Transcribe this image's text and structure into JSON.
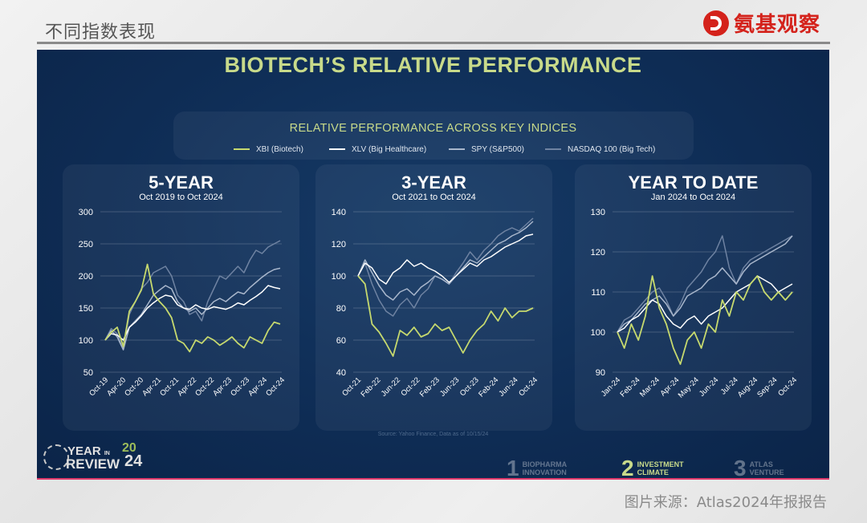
{
  "header": {
    "section_label": "不同指数表现",
    "brand": "氨基观察"
  },
  "slide": {
    "title": "BIOTECH’S RELATIVE PERFORMANCE",
    "legend_title": "RELATIVE PERFORMANCE ACROSS KEY INDICES",
    "legend": [
      {
        "name": "XBI (Biotech)",
        "color": "#c6d96e"
      },
      {
        "name": "XLV (Big Healthcare)",
        "color": "#ffffff"
      },
      {
        "name": "SPY (S&P500)",
        "color": "#a9b7cc"
      },
      {
        "name": "NASDAQ 100 (Big Tech)",
        "color": "#6f83a2"
      }
    ],
    "source": "Source: Yahoo Finance, Data as of 10/15/24",
    "brand_block": {
      "line1": "YEAR",
      "line1_small": "IN",
      "line2": "REVIEW",
      "year_top": "20",
      "year_bottom": "24"
    },
    "sections": [
      {
        "num": "1",
        "label1": "BIOPHARMA",
        "label2": "INNOVATION",
        "active": false
      },
      {
        "num": "2",
        "label1": "INVESTMENT",
        "label2": "CLIMATE",
        "active": true
      },
      {
        "num": "3",
        "label1": "ATLAS",
        "label2": "VENTURE",
        "active": false
      }
    ]
  },
  "footer": {
    "credit": "图片来源：Atlas2024年报报告"
  },
  "chart_data": [
    {
      "type": "line",
      "title": "5-YEAR",
      "subtitle": "Oct 2019 to Oct 2024",
      "ylim": [
        50,
        300
      ],
      "yticks": [
        50,
        100,
        150,
        200,
        250,
        300
      ],
      "xticks": [
        "Oct-19",
        "Apr-20",
        "Oct-20",
        "Apr-21",
        "Oct-21",
        "Apr-22",
        "Oct-22",
        "Apr-23",
        "Oct-23",
        "Apr-24",
        "Oct-24"
      ],
      "series": [
        {
          "name": "XBI (Biotech)",
          "color": "#c6d96e",
          "values": [
            100,
            112,
            120,
            90,
            145,
            160,
            178,
            218,
            172,
            160,
            150,
            135,
            100,
            95,
            82,
            100,
            95,
            105,
            100,
            92,
            98,
            105,
            95,
            88,
            105,
            100,
            95,
            115,
            128,
            125
          ]
        },
        {
          "name": "XLV (Big Healthcare)",
          "color": "#ffffff",
          "values": [
            100,
            110,
            108,
            100,
            120,
            128,
            138,
            150,
            158,
            165,
            170,
            168,
            155,
            150,
            148,
            155,
            150,
            148,
            152,
            150,
            148,
            152,
            158,
            155,
            162,
            168,
            175,
            185,
            182,
            180
          ]
        },
        {
          "name": "SPY (S&P500)",
          "color": "#a9b7cc",
          "values": [
            100,
            115,
            105,
            85,
            120,
            130,
            140,
            155,
            170,
            178,
            185,
            180,
            160,
            150,
            145,
            150,
            140,
            150,
            160,
            165,
            160,
            168,
            175,
            172,
            182,
            190,
            198,
            205,
            210,
            212
          ]
        },
        {
          "name": "NASDAQ 100 (Big Tech)",
          "color": "#6f83a2",
          "values": [
            100,
            118,
            110,
            85,
            140,
            160,
            180,
            190,
            205,
            210,
            215,
            200,
            170,
            160,
            140,
            145,
            130,
            160,
            180,
            200,
            195,
            205,
            215,
            205,
            225,
            240,
            235,
            245,
            250,
            255
          ]
        }
      ]
    },
    {
      "type": "line",
      "title": "3-YEAR",
      "subtitle": "Oct 2021 to Oct 2024",
      "ylim": [
        40,
        140
      ],
      "yticks": [
        40,
        60,
        80,
        100,
        120,
        140
      ],
      "xticks": [
        "Oct-21",
        "Feb-22",
        "Jun-22",
        "Oct-22",
        "Feb-23",
        "Jun-23",
        "Oct-23",
        "Feb-24",
        "Jun-24",
        "Oct-24"
      ],
      "series": [
        {
          "name": "XBI (Biotech)",
          "color": "#c6d96e",
          "values": [
            100,
            95,
            70,
            65,
            58,
            50,
            66,
            63,
            68,
            62,
            64,
            70,
            66,
            68,
            60,
            52,
            60,
            66,
            70,
            78,
            72,
            80,
            74,
            78,
            78,
            80
          ]
        },
        {
          "name": "XLV (Big Healthcare)",
          "color": "#ffffff",
          "values": [
            100,
            108,
            105,
            98,
            95,
            102,
            105,
            110,
            106,
            108,
            105,
            103,
            100,
            96,
            100,
            104,
            108,
            106,
            110,
            112,
            115,
            118,
            120,
            122,
            125,
            126
          ]
        },
        {
          "name": "SPY (S&P500)",
          "color": "#a9b7cc",
          "values": [
            100,
            110,
            102,
            94,
            88,
            85,
            90,
            92,
            88,
            93,
            96,
            100,
            98,
            95,
            100,
            105,
            110,
            108,
            112,
            116,
            120,
            122,
            125,
            127,
            130,
            134
          ]
        },
        {
          "name": "NASDAQ 100 (Big Tech)",
          "color": "#6f83a2",
          "values": [
            100,
            108,
            95,
            85,
            78,
            75,
            82,
            86,
            80,
            88,
            92,
            100,
            98,
            95,
            102,
            108,
            115,
            110,
            116,
            120,
            125,
            128,
            130,
            128,
            132,
            136
          ]
        }
      ]
    },
    {
      "type": "line",
      "title": "YEAR TO DATE",
      "subtitle": "Jan 2024 to Oct 2024",
      "ylim": [
        90,
        130
      ],
      "yticks": [
        90,
        100,
        110,
        120,
        130
      ],
      "xticks": [
        "Jan-24",
        "Feb-24",
        "Mar-24",
        "Apr-24",
        "May-24",
        "Jun-24",
        "Jul-24",
        "Aug-24",
        "Sep-24",
        "Oct-24"
      ],
      "series": [
        {
          "name": "XBI (Biotech)",
          "color": "#c6d96e",
          "values": [
            100,
            96,
            102,
            98,
            104,
            114,
            106,
            102,
            96,
            92,
            98,
            100,
            96,
            102,
            100,
            108,
            104,
            110,
            108,
            112,
            114,
            110,
            108,
            110,
            108,
            110
          ]
        },
        {
          "name": "XLV (Big Healthcare)",
          "color": "#ffffff",
          "values": [
            100,
            101,
            103,
            104,
            106,
            108,
            107,
            104,
            102,
            101,
            103,
            104,
            102,
            104,
            105,
            106,
            108,
            110,
            111,
            112,
            114,
            113,
            112,
            110,
            111,
            112
          ]
        },
        {
          "name": "SPY (S&P500)",
          "color": "#a9b7cc",
          "values": [
            100,
            102,
            103,
            105,
            107,
            108,
            109,
            107,
            104,
            106,
            109,
            110,
            111,
            113,
            114,
            116,
            114,
            112,
            115,
            117,
            118,
            119,
            120,
            121,
            122,
            124
          ]
        },
        {
          "name": "NASDAQ 100 (Big Tech)",
          "color": "#6f83a2",
          "values": [
            100,
            103,
            104,
            106,
            108,
            110,
            111,
            108,
            104,
            107,
            111,
            113,
            115,
            118,
            120,
            124,
            116,
            112,
            116,
            118,
            119,
            120,
            121,
            122,
            123,
            124
          ]
        }
      ]
    }
  ]
}
